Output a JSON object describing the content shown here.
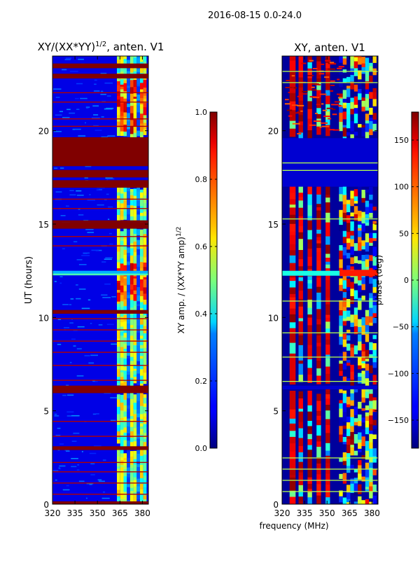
{
  "figure": {
    "suptitle": "2016-08-15 0.0-24.0",
    "common_xlabel": "frequency (MHz)"
  },
  "chart_data": [
    {
      "type": "heatmap",
      "name": "amplitude",
      "title_main": "XY/(XX*YY)",
      "title_exp": "1/2",
      "title_tail": ", anten. V1",
      "xlabel": "",
      "ylabel": "UT (hours)",
      "xlim": [
        320,
        384
      ],
      "ylim": [
        0,
        24
      ],
      "xticks": [
        320,
        335,
        350,
        365,
        380
      ],
      "yticks": [
        0,
        5,
        10,
        15,
        20
      ],
      "colorbar": {
        "label_main": "XY amp. / (XX*YY amp)",
        "label_exp": "1/2",
        "range": [
          0.0,
          1.0
        ],
        "ticks": [
          "0.0",
          "0.2",
          "0.4",
          "0.6",
          "0.8",
          "1.0"
        ],
        "tick_values": [
          0.0,
          0.2,
          0.4,
          0.6,
          0.8,
          1.0
        ]
      },
      "colormap": "jet",
      "background_value": 0.1,
      "saturated_bands_hours": [
        [
          0.0,
          0.15
        ],
        [
          2.9,
          3.1
        ],
        [
          5.95,
          6.35
        ],
        [
          10.2,
          10.4
        ],
        [
          14.75,
          15.1
        ],
        [
          15.1,
          15.2
        ],
        [
          16.95,
          17.35
        ],
        [
          17.5,
          17.9
        ],
        [
          18.1,
          19.65
        ],
        [
          22.8,
          23.05
        ],
        [
          23.35,
          23.6
        ]
      ],
      "saturated_lines_hours": [
        0.5,
        1.1,
        1.7,
        2.2,
        3.6,
        4.4,
        6.6,
        7.4,
        8.1,
        8.7,
        9.3,
        9.9,
        13.8,
        14.3,
        15.8,
        16.3,
        20.2,
        20.6,
        21.5,
        22.0
      ],
      "bright_column_range_mhz": [
        363,
        381
      ],
      "bright_gap_hours": [
        [
          2.9,
          3.1
        ],
        [
          5.95,
          6.35
        ],
        [
          14.75,
          15.2
        ],
        [
          16.95,
          19.65
        ]
      ],
      "high_amplitude_band_hours": [
        11.0,
        13.0
      ],
      "interference_stripe_hour": 12.25
    },
    {
      "type": "heatmap",
      "name": "phase",
      "title": "XY, anten. V1",
      "xlabel": "",
      "ylabel": "",
      "xlim": [
        320,
        384
      ],
      "ylim": [
        0,
        24
      ],
      "xticks": [
        320,
        335,
        350,
        365,
        380
      ],
      "yticks": [
        0,
        5,
        10,
        15,
        20
      ],
      "colorbar": {
        "label": "phase (deg)",
        "range": [
          -180,
          180
        ],
        "ticks": [
          "150",
          "100",
          "50",
          "0",
          "−50",
          "−100",
          "−150"
        ],
        "tick_values": [
          150,
          100,
          50,
          0,
          -50,
          -100,
          -150
        ]
      },
      "colormap": "jet",
      "background_value": -170,
      "flat_bands_hours": [
        [
          17.0,
          19.6
        ],
        [
          6.15,
          6.35
        ]
      ],
      "line_hours": [
        0.7,
        1.3,
        1.9,
        2.5,
        6.6,
        7.9,
        9.2,
        10.9,
        15.3,
        17.9,
        18.3,
        22.6,
        23.2
      ],
      "red_column_ranges_mhz": [
        [
          325,
          329
        ],
        [
          331,
          334
        ],
        [
          337,
          340
        ],
        [
          343,
          346
        ],
        [
          349,
          352
        ]
      ],
      "noisy_column_range_mhz": [
        358,
        382
      ],
      "interference_stripe_hour": 12.25
    }
  ]
}
